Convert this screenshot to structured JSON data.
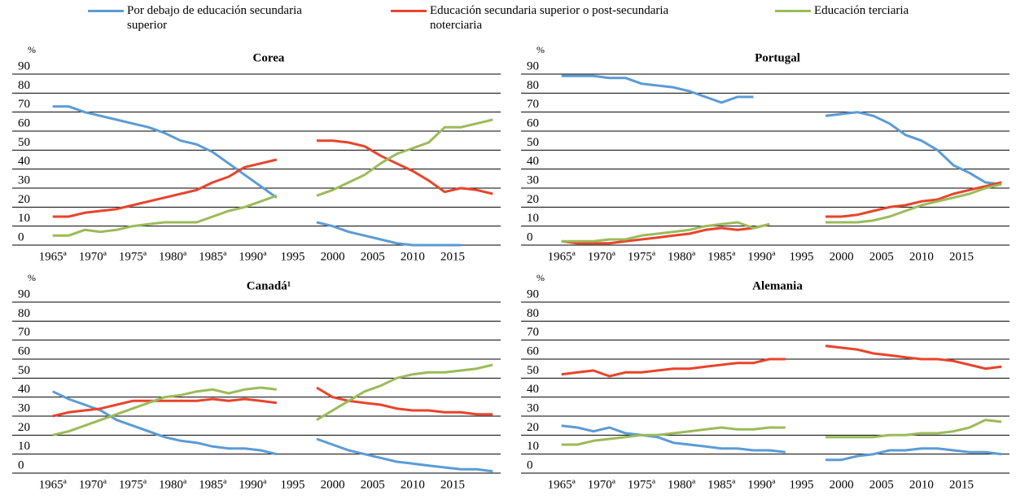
{
  "chart_data": [
    {
      "type": "line",
      "title": "Corea",
      "y_unit": "%",
      "x": [
        1965,
        1967,
        1969,
        1971,
        1973,
        1975,
        1977,
        1979,
        1981,
        1983,
        1985,
        1987,
        1989,
        1991,
        1993,
        1995,
        1998,
        2000,
        2002,
        2004,
        2006,
        2008,
        2010,
        2012,
        2014,
        2016,
        2018,
        2020
      ],
      "xlim": [
        1963,
        2021
      ],
      "xticks": [
        {
          "value": 1965,
          "label": "1965ª"
        },
        {
          "value": 1970,
          "label": "1970ª"
        },
        {
          "value": 1975,
          "label": "1975ª"
        },
        {
          "value": 1980,
          "label": "1980ª"
        },
        {
          "value": 1985,
          "label": "1985ª"
        },
        {
          "value": 1990,
          "label": "1990ª"
        },
        1995,
        2000,
        2005,
        2010,
        2015
      ],
      "ylim": [
        0,
        90
      ],
      "yticks": [
        0,
        10,
        20,
        30,
        40,
        50,
        60,
        70,
        80,
        90
      ],
      "grid": true,
      "series": [
        {
          "name": "Por debajo de educación secundaria superior",
          "color": "#5b9bd5",
          "values": [
            73,
            73,
            70,
            68,
            66,
            64,
            62,
            59,
            55,
            53,
            49,
            43,
            37,
            31,
            25,
            null,
            12,
            10,
            7,
            5,
            3,
            1,
            0,
            0,
            0,
            0,
            null,
            null
          ]
        },
        {
          "name": "Educación secundaria superior o post-secundaria noterciaria",
          "color": "#e8442b",
          "values": [
            15,
            15,
            17,
            18,
            19,
            21,
            23,
            25,
            27,
            29,
            33,
            36,
            41,
            43,
            45,
            null,
            55,
            55,
            54,
            52,
            47,
            43,
            39,
            34,
            28,
            30,
            29,
            27
          ]
        },
        {
          "name": "Educación terciaria",
          "color": "#9bbb59",
          "values": [
            5,
            5,
            8,
            7,
            8,
            10,
            11,
            12,
            12,
            12,
            15,
            18,
            20,
            23,
            26,
            null,
            26,
            29,
            33,
            37,
            43,
            48,
            51,
            54,
            62,
            62,
            64,
            66
          ]
        }
      ]
    },
    {
      "type": "line",
      "title": "Portugal",
      "y_unit": "%",
      "x": [
        1965,
        1967,
        1969,
        1971,
        1973,
        1975,
        1977,
        1979,
        1981,
        1983,
        1985,
        1987,
        1989,
        1991,
        1993,
        1995,
        1998,
        2000,
        2002,
        2004,
        2006,
        2008,
        2010,
        2012,
        2014,
        2016,
        2018,
        2020
      ],
      "xlim": [
        1963,
        2021
      ],
      "xticks": [
        {
          "value": 1965,
          "label": "1965ª"
        },
        {
          "value": 1970,
          "label": "1970ª"
        },
        {
          "value": 1975,
          "label": "1975ª"
        },
        {
          "value": 1980,
          "label": "1980ª"
        },
        {
          "value": 1985,
          "label": "1985ª"
        },
        {
          "value": 1990,
          "label": "1990ª"
        },
        1995,
        2000,
        2005,
        2010,
        2015
      ],
      "ylim": [
        0,
        90
      ],
      "yticks": [
        0,
        10,
        20,
        30,
        40,
        50,
        60,
        70,
        80,
        90
      ],
      "grid": true,
      "series": [
        {
          "name": "Por debajo de educación secundaria superior",
          "color": "#5b9bd5",
          "values": [
            89,
            89,
            89,
            88,
            88,
            85,
            84,
            83,
            81,
            78,
            75,
            78,
            78,
            null,
            null,
            null,
            68,
            69,
            70,
            68,
            64,
            58,
            55,
            50,
            42,
            38,
            33,
            32
          ]
        },
        {
          "name": "Educación secundaria superior o post-secundaria noterciaria",
          "color": "#e8442b",
          "values": [
            2,
            1,
            1,
            1,
            2,
            3,
            4,
            5,
            6,
            8,
            9,
            8,
            9,
            11,
            null,
            null,
            15,
            15,
            16,
            18,
            20,
            21,
            23,
            24,
            27,
            29,
            31,
            33
          ]
        },
        {
          "name": "Educación terciaria",
          "color": "#9bbb59",
          "values": [
            2,
            2,
            2,
            3,
            3,
            5,
            6,
            7,
            8,
            10,
            11,
            12,
            9,
            11,
            null,
            null,
            12,
            12,
            12,
            13,
            15,
            18,
            21,
            23,
            25,
            27,
            30,
            32
          ]
        }
      ]
    },
    {
      "type": "line",
      "title": "Canadá¹",
      "y_unit": "%",
      "x": [
        1965,
        1967,
        1969,
        1971,
        1973,
        1975,
        1977,
        1979,
        1981,
        1983,
        1985,
        1987,
        1989,
        1991,
        1993,
        1995,
        1998,
        2000,
        2002,
        2004,
        2006,
        2008,
        2010,
        2012,
        2014,
        2016,
        2018,
        2020
      ],
      "xlim": [
        1963,
        2021
      ],
      "xticks": [
        {
          "value": 1965,
          "label": "1965ª"
        },
        {
          "value": 1970,
          "label": "1970ª"
        },
        {
          "value": 1975,
          "label": "1975ª"
        },
        {
          "value": 1980,
          "label": "1980ª"
        },
        {
          "value": 1985,
          "label": "1985ª"
        },
        {
          "value": 1990,
          "label": "1990ª"
        },
        1995,
        2000,
        2005,
        2010,
        2015
      ],
      "ylim": [
        0,
        90
      ],
      "yticks": [
        0,
        10,
        20,
        30,
        40,
        50,
        60,
        70,
        80,
        90
      ],
      "grid": true,
      "series": [
        {
          "name": "Por debajo de educación secundaria superior",
          "color": "#5b9bd5",
          "values": [
            43,
            39,
            36,
            33,
            28,
            25,
            22,
            19,
            17,
            16,
            14,
            13,
            13,
            12,
            10,
            null,
            18,
            15,
            12,
            10,
            8,
            6,
            5,
            4,
            3,
            2,
            2,
            1
          ]
        },
        {
          "name": "Educación secundaria superior o post-secundaria noterciaria",
          "color": "#e8442b",
          "values": [
            30,
            32,
            33,
            34,
            36,
            38,
            38,
            38,
            38,
            38,
            39,
            38,
            39,
            38,
            37,
            null,
            45,
            40,
            38,
            37,
            36,
            34,
            33,
            33,
            32,
            32,
            31,
            31
          ]
        },
        {
          "name": "Educación terciaria",
          "color": "#9bbb59",
          "values": [
            20,
            22,
            25,
            28,
            31,
            34,
            37,
            40,
            41,
            43,
            44,
            42,
            44,
            45,
            44,
            null,
            28,
            33,
            38,
            43,
            46,
            50,
            52,
            53,
            53,
            54,
            55,
            57
          ]
        }
      ]
    },
    {
      "type": "line",
      "title": "Alemania",
      "y_unit": "%",
      "x": [
        1965,
        1967,
        1969,
        1971,
        1973,
        1975,
        1977,
        1979,
        1981,
        1983,
        1985,
        1987,
        1989,
        1991,
        1993,
        1995,
        1998,
        2000,
        2002,
        2004,
        2006,
        2008,
        2010,
        2012,
        2014,
        2016,
        2018,
        2020
      ],
      "xlim": [
        1963,
        2021
      ],
      "xticks": [
        {
          "value": 1965,
          "label": "1965ª"
        },
        {
          "value": 1970,
          "label": "1970ª"
        },
        {
          "value": 1975,
          "label": "1975ª"
        },
        {
          "value": 1980,
          "label": "1980ª"
        },
        {
          "value": 1985,
          "label": "1985ª"
        },
        {
          "value": 1990,
          "label": "1990ª"
        },
        1995,
        2000,
        2005,
        2010,
        2015
      ],
      "ylim": [
        0,
        90
      ],
      "yticks": [
        0,
        10,
        20,
        30,
        40,
        50,
        60,
        70,
        80,
        90
      ],
      "grid": true,
      "series": [
        {
          "name": "Por debajo de educación secundaria superior",
          "color": "#5b9bd5",
          "values": [
            25,
            24,
            22,
            24,
            21,
            20,
            19,
            16,
            15,
            14,
            13,
            13,
            12,
            12,
            11,
            null,
            7,
            7,
            9,
            10,
            12,
            12,
            13,
            13,
            12,
            11,
            11,
            10
          ]
        },
        {
          "name": "Educación secundaria superior o post-secundaria noterciaria",
          "color": "#e8442b",
          "values": [
            52,
            53,
            54,
            51,
            53,
            53,
            54,
            55,
            55,
            56,
            57,
            58,
            58,
            60,
            60,
            null,
            67,
            66,
            65,
            63,
            62,
            61,
            60,
            60,
            59,
            57,
            55,
            56
          ]
        },
        {
          "name": "Educación terciaria",
          "color": "#9bbb59",
          "values": [
            15,
            15,
            17,
            18,
            19,
            20,
            20,
            21,
            22,
            23,
            24,
            23,
            23,
            24,
            24,
            null,
            19,
            19,
            19,
            19,
            20,
            20,
            21,
            21,
            22,
            24,
            28,
            27
          ]
        }
      ]
    }
  ]
}
